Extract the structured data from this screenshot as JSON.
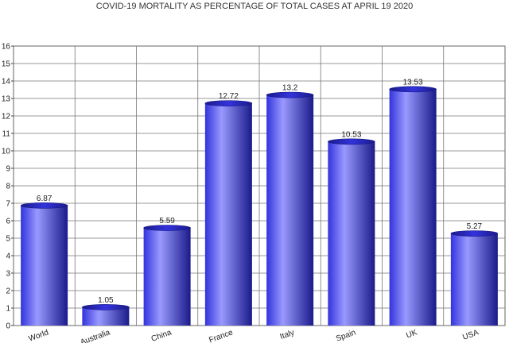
{
  "chart_data": {
    "type": "bar",
    "title": "COVID-19 MORTALITY AS PERCENTAGE OF TOTAL CASES AT APRIL 19 2020",
    "xlabel": "",
    "ylabel": "",
    "categories": [
      "World",
      "Australia",
      "China",
      "France",
      "Italy",
      "Spain",
      "UK",
      "USA"
    ],
    "values": [
      6.87,
      1.05,
      5.59,
      12.72,
      13.2,
      10.53,
      13.53,
      5.27
    ],
    "data_labels": [
      "6.87",
      "1.05",
      "5.59",
      "12.72",
      "13.2",
      "10.53",
      "13.53",
      "5.27"
    ],
    "ylim": [
      0,
      16
    ],
    "yticks": [
      "0",
      "1",
      "2",
      "3",
      "4",
      "5",
      "6",
      "7",
      "8",
      "9",
      "10",
      "11",
      "12",
      "13",
      "14",
      "15",
      "16"
    ],
    "grid": true,
    "legend": "none",
    "bar_color": "#3333dd",
    "bar_highlight": "#9999ff",
    "bar_shadow": "#1a1a8a",
    "background": "#ffffff"
  }
}
